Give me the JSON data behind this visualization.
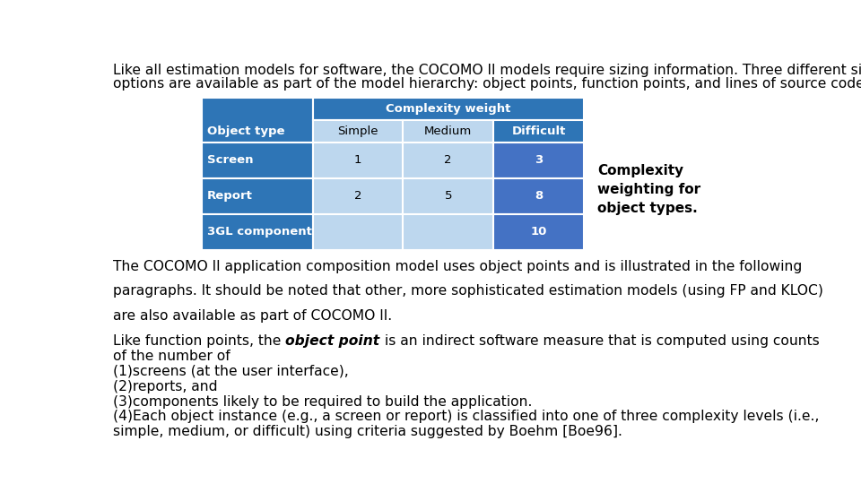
{
  "intro_line1": "Like all estimation models for software, the COCOMO II models require sizing information. Three different sizing",
  "intro_line2": "options are available as part of the model hierarchy: object points, function points, and lines of source code.",
  "table_header_main": "Complexity weight",
  "table_col0_header": "Object type",
  "table_col_headers": [
    "Simple",
    "Medium",
    "Difficult"
  ],
  "table_rows": [
    [
      "Screen",
      "1",
      "2",
      "3"
    ],
    [
      "Report",
      "2",
      "5",
      "8"
    ],
    [
      "3GL component",
      "",
      "",
      "10"
    ]
  ],
  "sidebar_text": "Complexity\nweighting for\nobject types.",
  "bottom_lines": [
    {
      "text": "The COCOMO II application composition model uses object points and is illustrated in the following",
      "spaced": true
    },
    {
      "text": "paragraphs. It should be noted that other, more sophisticated estimation models (using FP and KLOC)",
      "spaced": true
    },
    {
      "text": "are also available as part of COCOMO II.",
      "spaced": true
    },
    {
      "prefix": "Like function points, the ",
      "italic": "object point",
      "suffix": " is an indirect software measure that is computed using counts",
      "spaced": false
    },
    {
      "text": "of the number of",
      "spaced": false
    },
    {
      "text": "(1)screens (at the user interface),",
      "spaced": false
    },
    {
      "text": "(2)reports, and",
      "spaced": false
    },
    {
      "text": "(3)components likely to be required to build the application.",
      "spaced": false
    },
    {
      "text": "(4)Each object instance (e.g., a screen or report) is classified into one of three complexity levels (i.e.,",
      "spaced": false
    },
    {
      "text": "simple, medium, or difficult) using criteria suggested by Boehm [Boe96].",
      "spaced": false
    }
  ],
  "color_dark_blue": "#2E75B6",
  "color_mid_blue": "#4472C4",
  "color_light_blue": "#BDD7EE",
  "color_white": "#FFFFFF",
  "bg_color": "#FFFFFF"
}
